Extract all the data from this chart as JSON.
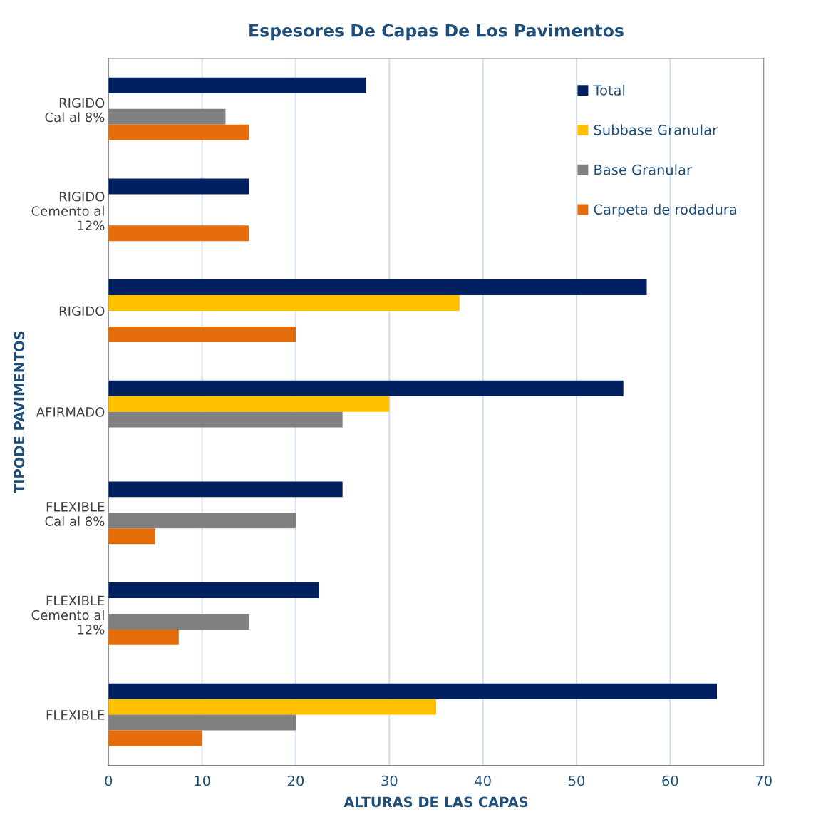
{
  "chart_data": {
    "type": "bar",
    "orientation": "horizontal",
    "title": "Espesores De Capas De Los Pavimentos",
    "xlabel": "ALTURAS DE LAS CAPAS",
    "ylabel": "TIPODE PAVIMENTOS",
    "categories": [
      "RIGIDO\nCal al 8%",
      "RIGIDO\nCemento al\n12%",
      "RIGIDO",
      "AFIRMADO",
      "FLEXIBLE\nCal al 8%",
      "FLEXIBLE\nCemento al\n12%",
      "FLEXIBLE"
    ],
    "series": [
      {
        "name": "Total",
        "color": "#002060",
        "values": [
          27.5,
          15,
          57.5,
          55,
          25,
          22.5,
          65
        ]
      },
      {
        "name": "Subbase Granular",
        "color": "#ffc000",
        "values": [
          null,
          null,
          37.5,
          30,
          null,
          null,
          35
        ]
      },
      {
        "name": "Base Granular",
        "color": "#808080",
        "values": [
          12.5,
          null,
          null,
          25,
          20,
          15,
          20
        ]
      },
      {
        "name": "Carpeta de rodadura",
        "color": "#e46c0a",
        "values": [
          15,
          15,
          20,
          null,
          5,
          7.5,
          10
        ]
      }
    ],
    "xlim": [
      0,
      70
    ],
    "xticks": [
      0,
      10,
      20,
      30,
      40,
      50,
      60,
      70
    ],
    "grid": "x",
    "legend": "top right"
  }
}
